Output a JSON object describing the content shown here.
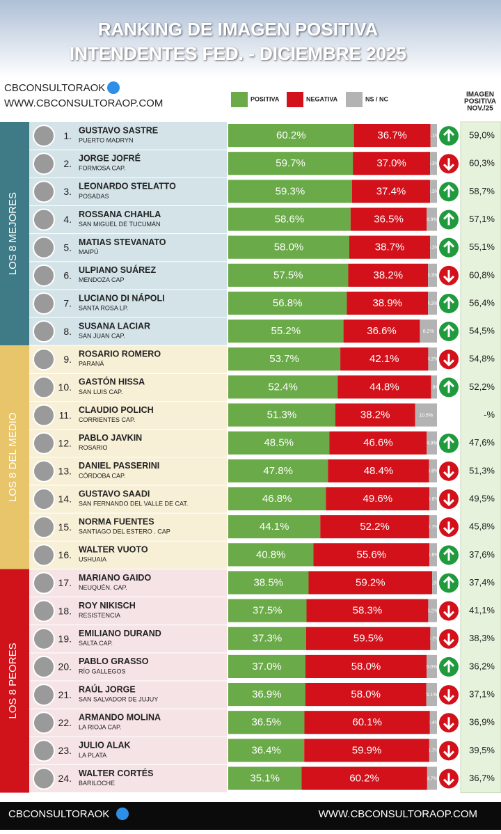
{
  "header": {
    "brand": "CBCONSULTORAOK",
    "url": "WWW.CBCONSULTORAOP.COM"
  },
  "footer": {
    "brand": "CBCONSULTORAOK",
    "url": "WWW.CBCONSULTORAOP.COM"
  },
  "chart_data": {
    "type": "bar",
    "orientation": "horizontal",
    "stacked": true,
    "title": "RANKING DE IMAGEN POSITIVA",
    "subtitle": "INTENDENTES FED. - DICIEMBRE 2025",
    "xlim": [
      0,
      100
    ],
    "categories": [
      "GUSTAVO SASTRE",
      "JORGE JOFRÉ",
      "LEONARDO STELATTO",
      "ROSSANA CHAHLA",
      "MATIAS STEVANATO",
      "ULPIANO SUÁREZ",
      "LUCIANO DI NÁPOLI",
      "SUSANA LACIAR",
      "ROSARIO ROMERO",
      "GASTÓN HISSA",
      "CLAUDIO POLICH",
      "PABLO JAVKIN",
      "DANIEL PASSERINI",
      "GUSTAVO SAADI",
      "NORMA FUENTES",
      "WALTER VUOTO",
      "MARIANO GAIDO",
      "ROY NIKISCH",
      "EMILIANO DURAND",
      "PABLO GRASSO",
      "RAÚL JORGE",
      "ARMANDO MOLINA",
      "JULIO ALAK",
      "WALTER CORTÉS"
    ],
    "cities": [
      "PUERTO MADRYN",
      "FORMOSA CAP.",
      "POSADAS",
      "SAN MIGUEL DE TUCUMÁN",
      "MAIPÚ",
      "MENDOZA CAP",
      "SANTA ROSA LP.",
      "SAN JUAN CAP.",
      "PARANÁ",
      "SAN LUIS CAP.",
      "CORRIENTES CAP.",
      "ROSARIO",
      "CÓRDOBA CAP.",
      "SAN FERNANDO DEL VALLE DE CAT.",
      "SANTIAGO DEL ESTERO . CAP",
      "USHUAIA",
      "NEUQUÉN. CAP.",
      "RESISTENCIA",
      "SALTA CAP.",
      "RÍO GALLEGOS",
      "SAN SALVADOR DE JUJUY",
      "LA RIOJA CAP.",
      "LA PLATA",
      "BARILOCHE"
    ],
    "ranks": [
      "1.",
      "2.",
      "3.",
      "4.",
      "5.",
      "6.",
      "7.",
      "8.",
      "9.",
      "10.",
      "11.",
      "12.",
      "13.",
      "14.",
      "15.",
      "16.",
      "17.",
      "18.",
      "19.",
      "20.",
      "21.",
      "22.",
      "23.",
      "24."
    ],
    "groups": [
      {
        "label": "LOS 8 MEJORES",
        "color": "#3f7b87",
        "background": "#d3e3e8"
      },
      {
        "label": "LOS 8 DEL MEDIO",
        "color": "#e8c46a",
        "background": "#f7efd6"
      },
      {
        "label": "LOS 8 PEORES",
        "color": "#d0121b",
        "background": "#f6e3e6"
      }
    ],
    "series": [
      {
        "name": "POSITIVA",
        "color": "#6aaa48",
        "values": [
          60.2,
          59.7,
          59.3,
          58.6,
          58.0,
          57.5,
          56.8,
          55.2,
          53.7,
          52.4,
          51.3,
          48.5,
          47.8,
          46.8,
          44.1,
          40.8,
          38.5,
          37.5,
          37.3,
          37.0,
          36.9,
          36.5,
          36.4,
          35.1
        ],
        "value_labels": [
          "60.2%",
          "59.7%",
          "59.3%",
          "58.6%",
          "58.0%",
          "57.5%",
          "56.8%",
          "55.2%",
          "53.7%",
          "52.4%",
          "51.3%",
          "48.5%",
          "47.8%",
          "46.8%",
          "44.1%",
          "40.8%",
          "38.5%",
          "37.5%",
          "37.3%",
          "37.0%",
          "36.9%",
          "36.5%",
          "36.4%",
          "35.1%"
        ]
      },
      {
        "name": "NEGATIVA",
        "color": "#d2111a",
        "values": [
          36.7,
          37.0,
          37.4,
          36.5,
          38.7,
          38.2,
          38.9,
          36.6,
          42.1,
          44.8,
          38.2,
          46.6,
          48.4,
          49.6,
          52.2,
          55.6,
          59.2,
          58.3,
          59.5,
          58.0,
          58.0,
          60.1,
          59.9,
          60.2
        ],
        "value_labels": [
          "36.7%",
          "37.0%",
          "37.4%",
          "36.5%",
          "38.7%",
          "38.2%",
          "38.9%",
          "36.6%",
          "42.1%",
          "44.8%",
          "38.2%",
          "46.6%",
          "48.4%",
          "49.6%",
          "52.2%",
          "55.6%",
          "59.2%",
          "58.3%",
          "59.5%",
          "58.0%",
          "58.0%",
          "60.1%",
          "59.9%",
          "60.2%"
        ]
      },
      {
        "name": "NS / NC",
        "color": "#b3b3b3",
        "values": [
          3.1,
          3.3,
          3.3,
          4.9,
          3.3,
          4.3,
          4.3,
          8.2,
          4.2,
          2.8,
          10.5,
          4.9,
          3.8,
          3.6,
          3.7,
          3.6,
          2.3,
          4.2,
          3.2,
          5.0,
          5.1,
          3.4,
          3.7,
          4.7
        ],
        "value_labels": [
          "3.1%",
          "3.3%",
          "3.3%",
          "4.9%",
          "3.3%",
          "4.3%",
          "4.3%",
          "8.2%",
          "4.2%",
          "2.8%",
          "10.5%",
          "4.9%",
          "3.8%",
          "3.6%",
          "3.7%",
          "3.6%",
          "2.3%",
          "4.2%",
          "3.2%",
          "5.0%",
          "5.1%",
          "3.4%",
          "3.7%",
          "4.7%"
        ]
      }
    ],
    "trend": [
      "up",
      "down",
      "up",
      "up",
      "up",
      "down",
      "up",
      "up",
      "down",
      "up",
      null,
      "up",
      "down",
      "down",
      "down",
      "up",
      "up",
      "down",
      "down",
      "up",
      "down",
      "down",
      "down",
      "down"
    ],
    "trend_colors": {
      "up": "#1f9a3c",
      "down": "#d2111a"
    },
    "previous_header": [
      "IMAGEN",
      "POSITIVA",
      "NOV./25"
    ],
    "previous_values": [
      59.0,
      60.3,
      58.7,
      57.1,
      55.1,
      60.8,
      56.4,
      54.5,
      54.8,
      52.2,
      null,
      47.6,
      51.3,
      49.5,
      45.8,
      37.6,
      37.4,
      41.1,
      38.3,
      36.2,
      37.1,
      36.9,
      39.5,
      36.7
    ],
    "previous_value_labels": [
      "59,0%",
      "60,3%",
      "58,7%",
      "57,1%",
      "55,1%",
      "60,8%",
      "56,4%",
      "54,5%",
      "54,8%",
      "52,2%",
      "-%",
      "47,6%",
      "51,3%",
      "49,5%",
      "45,8%",
      "37,6%",
      "37,4%",
      "41,1%",
      "38,3%",
      "36,2%",
      "37,1%",
      "36,9%",
      "39,5%",
      "36,7%"
    ]
  }
}
